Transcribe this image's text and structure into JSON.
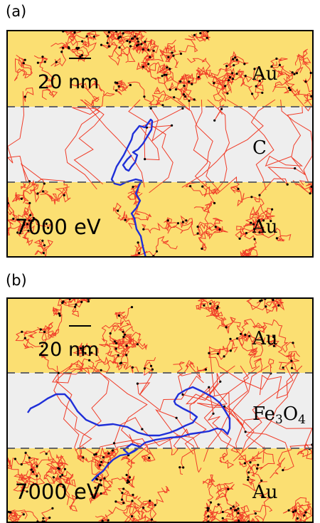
{
  "panels": [
    {
      "id": "a",
      "label": "(a)",
      "scale_bar_label": "20 nm",
      "energy_label": "7000 eV",
      "layers": {
        "top": "Au",
        "middle": "C",
        "bottom": "Au"
      }
    },
    {
      "id": "b",
      "label": "(b)",
      "scale_bar_label": "20 nm",
      "energy_label": "7000 eV",
      "layers": {
        "top": "Au",
        "middle_base_1": "Fe",
        "middle_sub_1": "3",
        "middle_base_2": "O",
        "middle_sub_2": "4",
        "bottom": "Au"
      }
    }
  ],
  "colors": {
    "gold": "#fbdf72",
    "gray_layer": "#eeeeee",
    "red_tracks": "#f03c28",
    "blue_track": "#1f2fd8",
    "border": "#000000",
    "dash": "#666666"
  }
}
